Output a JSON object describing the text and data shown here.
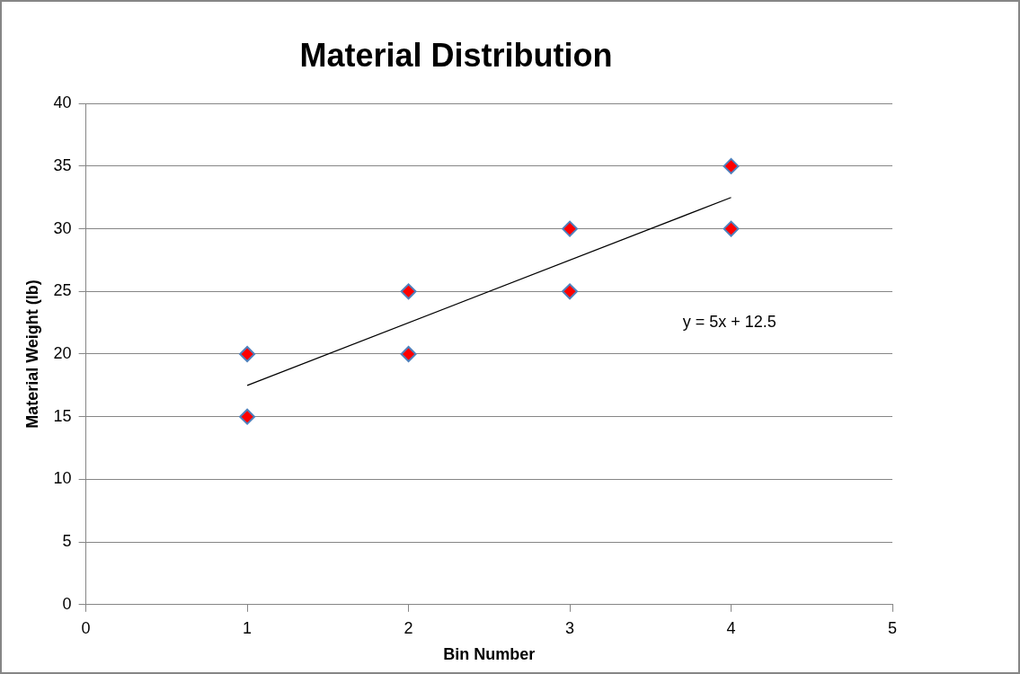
{
  "chart_data": {
    "type": "scatter",
    "title": "Material Distribution",
    "xlabel": "Bin Number",
    "ylabel": "Material Weight (lb)",
    "xlim": [
      0,
      5
    ],
    "xticks": [
      0,
      1,
      2,
      3,
      4,
      5
    ],
    "ylim": [
      0,
      40
    ],
    "yticks": [
      0,
      5,
      10,
      15,
      20,
      25,
      30,
      35,
      40
    ],
    "grid": "y",
    "legend": false,
    "marker": "diamond",
    "series": [
      {
        "color": "#ff0000",
        "x": [
          1,
          1,
          2,
          2,
          3,
          3,
          4,
          4
        ],
        "values": [
          20,
          15,
          25,
          20,
          30,
          25,
          35,
          30
        ]
      },
      {
        "type": "line",
        "color": "#000000",
        "marker": "none",
        "x": [
          1,
          4
        ],
        "values": [
          17.5,
          32.5
        ]
      }
    ],
    "annotations": [
      "y = 5x + 12.5"
    ]
  }
}
